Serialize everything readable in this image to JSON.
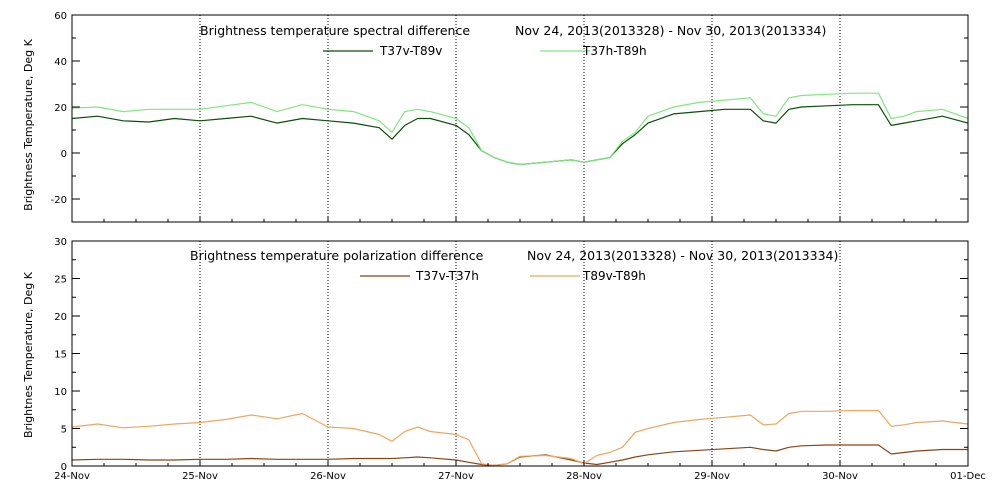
{
  "chart_data": [
    {
      "type": "line",
      "title": "Brightness temperature spectral difference",
      "subtitle": "Nov 24, 2013(2013328)  -  Nov 30, 2013(2013334)",
      "ylabel": "Brightness Temperature, Deg K",
      "xlabel": "",
      "ylim": [
        -30,
        60
      ],
      "yticks": [
        "-20",
        "0",
        "20",
        "40",
        "60"
      ],
      "ytick_values": [
        -20,
        0,
        20,
        40,
        60
      ],
      "xlim": [
        0,
        7
      ],
      "xticks": [
        "24-Nov",
        "25-Nov",
        "26-Nov",
        "27-Nov",
        "28-Nov",
        "29-Nov",
        "30-Nov",
        "01-Dec"
      ],
      "grid": "vertical dotted at day boundaries",
      "legend_position": "top-center",
      "x": [
        0,
        0.2,
        0.4,
        0.6,
        0.8,
        1.0,
        1.2,
        1.4,
        1.6,
        1.8,
        2.0,
        2.2,
        2.4,
        2.5,
        2.6,
        2.7,
        2.8,
        3.0,
        3.1,
        3.2,
        3.3,
        3.4,
        3.5,
        3.7,
        3.9,
        4.0,
        4.1,
        4.2,
        4.3,
        4.4,
        4.5,
        4.7,
        4.9,
        5.1,
        5.3,
        5.4,
        5.5,
        5.6,
        5.7,
        5.9,
        6.1,
        6.3,
        6.4,
        6.5,
        6.6,
        6.8,
        7.0
      ],
      "series": [
        {
          "name": "T37v-T89v",
          "color": "#0a4f0a",
          "values": [
            15,
            16,
            14,
            13.5,
            15,
            14,
            15,
            16,
            13,
            15,
            14,
            13,
            11,
            6,
            12,
            15,
            15,
            12,
            8,
            1,
            -2,
            -4,
            -5,
            -4,
            -3,
            -4,
            -3,
            -2,
            4,
            8,
            13,
            17,
            18,
            19,
            19,
            14,
            13,
            19,
            20,
            20.5,
            21,
            21,
            12,
            13,
            14,
            16,
            13
          ]
        },
        {
          "name": "T37h-T89h",
          "color": "#7fe87f",
          "values": [
            19.5,
            20,
            18,
            19,
            19,
            19,
            20.5,
            22,
            18,
            21,
            19,
            18,
            14,
            9,
            18,
            19,
            18,
            15,
            11,
            1,
            -2,
            -4,
            -5,
            -4,
            -3,
            -4,
            -3,
            -2,
            5,
            9,
            16,
            20,
            22,
            23,
            24,
            17,
            16,
            24,
            25,
            25.5,
            26,
            26,
            15,
            16,
            18,
            19,
            15
          ]
        }
      ]
    },
    {
      "type": "line",
      "title": "Brightness temperature polarization difference",
      "subtitle": "Nov 24, 2013(2013328)  -  Nov 30, 2013(2013334)",
      "ylabel": "Brightnes Temperature, Deg K",
      "xlabel": "",
      "ylim": [
        0,
        30
      ],
      "yticks": [
        "0",
        "5",
        "10",
        "15",
        "20",
        "25",
        "30"
      ],
      "ytick_values": [
        0,
        5,
        10,
        15,
        20,
        25,
        30
      ],
      "xlim": [
        0,
        7
      ],
      "xticks": [
        "24-Nov",
        "25-Nov",
        "26-Nov",
        "27-Nov",
        "28-Nov",
        "29-Nov",
        "30-Nov",
        "01-Dec"
      ],
      "grid": "vertical dotted at day boundaries",
      "legend_position": "top-center",
      "x": [
        0,
        0.2,
        0.4,
        0.6,
        0.8,
        1.0,
        1.2,
        1.4,
        1.6,
        1.8,
        2.0,
        2.2,
        2.4,
        2.5,
        2.6,
        2.7,
        2.8,
        3.0,
        3.1,
        3.2,
        3.3,
        3.4,
        3.5,
        3.7,
        3.9,
        4.0,
        4.1,
        4.2,
        4.3,
        4.4,
        4.5,
        4.7,
        4.9,
        5.1,
        5.3,
        5.4,
        5.5,
        5.6,
        5.7,
        5.9,
        6.1,
        6.3,
        6.4,
        6.5,
        6.6,
        6.8,
        7.0
      ],
      "series": [
        {
          "name": "T37v-T37h",
          "color": "#8b4513",
          "values": [
            0.8,
            0.9,
            0.9,
            0.8,
            0.8,
            0.9,
            0.9,
            1.0,
            0.9,
            0.9,
            0.9,
            1.0,
            1.0,
            1.0,
            1.1,
            1.2,
            1.1,
            0.8,
            0.5,
            0.2,
            0.1,
            0.3,
            1.2,
            1.5,
            0.8,
            0.4,
            0.2,
            0.5,
            0.8,
            1.2,
            1.5,
            1.9,
            2.1,
            2.3,
            2.5,
            2.2,
            2.0,
            2.5,
            2.7,
            2.8,
            2.8,
            2.8,
            1.6,
            1.8,
            2.0,
            2.2,
            2.2
          ]
        },
        {
          "name": "T89v-T89h",
          "color": "#f4a460",
          "values": [
            5.2,
            5.6,
            5.1,
            5.3,
            5.6,
            5.8,
            6.2,
            6.8,
            6.3,
            7.0,
            5.2,
            5.0,
            4.2,
            3.3,
            4.6,
            5.2,
            4.6,
            4.2,
            3.5,
            0.3,
            0.1,
            0.3,
            1.3,
            1.4,
            1.0,
            0.3,
            1.4,
            1.8,
            2.5,
            4.5,
            5.0,
            5.8,
            6.2,
            6.5,
            6.8,
            5.5,
            5.6,
            7.0,
            7.3,
            7.3,
            7.4,
            7.4,
            5.3,
            5.5,
            5.8,
            6.0,
            5.6
          ]
        }
      ]
    }
  ]
}
